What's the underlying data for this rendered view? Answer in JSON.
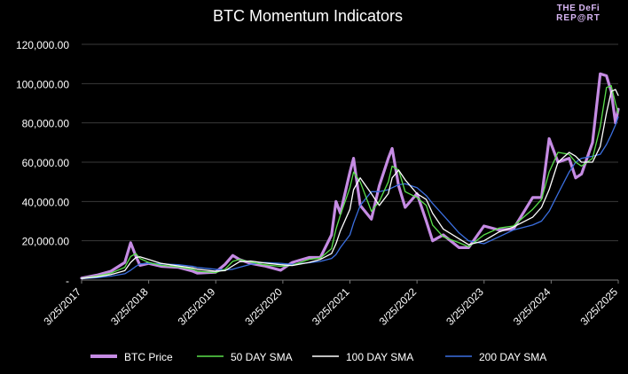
{
  "logo": {
    "line1": "THE DeFi",
    "line2": "REP@RT"
  },
  "chart_data": {
    "type": "line",
    "title": "BTC Momentum Indicators",
    "xlabel": "",
    "ylabel": "",
    "x_ticks": [
      "3/25/2017",
      "3/25/2018",
      "3/25/2019",
      "3/25/2020",
      "3/25/2021",
      "3/25/2022",
      "3/25/2023",
      "3/25/2024",
      "3/25/2025"
    ],
    "y_ticks": [
      "-",
      "20,000.00",
      "40,000.00",
      "60,000.00",
      "80,000.00",
      "100,000.00",
      "120,000.00"
    ],
    "ylim": [
      0,
      120000
    ],
    "xlim": [
      "2017-03-25",
      "2025-03-25"
    ],
    "grid": true,
    "legend": "bottom",
    "x": [
      "2017-03-25",
      "2017-06-15",
      "2017-09-01",
      "2017-11-15",
      "2017-12-17",
      "2018-01-15",
      "2018-02-06",
      "2018-03-25",
      "2018-06-01",
      "2018-09-01",
      "2018-11-20",
      "2018-12-15",
      "2019-03-25",
      "2019-05-15",
      "2019-06-26",
      "2019-08-01",
      "2019-10-01",
      "2019-12-15",
      "2020-03-13",
      "2020-05-15",
      "2020-08-15",
      "2020-10-15",
      "2020-12-15",
      "2021-01-08",
      "2021-02-01",
      "2021-03-25",
      "2021-04-14",
      "2021-05-20",
      "2021-07-20",
      "2021-09-01",
      "2021-10-20",
      "2021-11-10",
      "2021-12-15",
      "2022-01-20",
      "2022-03-25",
      "2022-05-15",
      "2022-06-18",
      "2022-08-15",
      "2022-11-09",
      "2022-12-31",
      "2023-03-25",
      "2023-06-15",
      "2023-09-01",
      "2023-12-15",
      "2024-02-01",
      "2024-03-14",
      "2024-05-01",
      "2024-07-01",
      "2024-08-05",
      "2024-09-06",
      "2024-11-05",
      "2024-12-17",
      "2025-01-20",
      "2025-02-15",
      "2025-03-10",
      "2025-03-25"
    ],
    "series": [
      {
        "name": "BTC Price",
        "color": "#c58be3",
        "width": 3.2,
        "values": [
          1000,
          2500,
          4500,
          9000,
          19000,
          12000,
          7500,
          8500,
          7000,
          6500,
          4500,
          3500,
          4000,
          8000,
          12500,
          10500,
          8500,
          7200,
          5000,
          9000,
          11500,
          11500,
          23000,
          40000,
          34000,
          55000,
          62000,
          38000,
          31000,
          48000,
          62000,
          67000,
          48000,
          37000,
          44000,
          30000,
          20000,
          23000,
          16500,
          16500,
          27500,
          25500,
          26000,
          42000,
          42000,
          72000,
          60000,
          62000,
          52000,
          54000,
          70000,
          105000,
          104000,
          96000,
          80000,
          87000
        ]
      },
      {
        "name": "50 DAY SMA",
        "color": "#5ae04b",
        "width": 1.3,
        "values": [
          900,
          2000,
          3500,
          6500,
          12000,
          13500,
          11000,
          9000,
          7500,
          6700,
          5500,
          4500,
          3800,
          5500,
          9500,
          10500,
          9200,
          7800,
          7000,
          7500,
          10500,
          11200,
          16000,
          26000,
          33000,
          47000,
          55000,
          50000,
          35000,
          40000,
          50000,
          58000,
          56000,
          45000,
          42000,
          38000,
          28000,
          22000,
          19000,
          17000,
          23000,
          26500,
          27500,
          36000,
          41000,
          55000,
          65000,
          64000,
          60000,
          58000,
          62000,
          78000,
          98000,
          99000,
          90000,
          85000
        ]
      },
      {
        "name": "100 DAY SMA",
        "color": "#ffffff",
        "width": 1.3,
        "values": [
          800,
          1600,
          2800,
          4800,
          9000,
          11500,
          11800,
          10500,
          8500,
          7200,
          6200,
          5500,
          4500,
          4800,
          7200,
          9300,
          9700,
          8700,
          7800,
          7400,
          9000,
          10500,
          13500,
          18500,
          25000,
          36000,
          46000,
          52000,
          44000,
          38000,
          44000,
          52000,
          56000,
          51000,
          44000,
          41000,
          34000,
          26000,
          21000,
          18000,
          20000,
          24500,
          27000,
          32000,
          37000,
          46000,
          60000,
          65000,
          63000,
          60000,
          60000,
          68000,
          85000,
          96000,
          97000,
          94000
        ]
      },
      {
        "name": "200 DAY SMA",
        "color": "#3b6fe0",
        "width": 1.3,
        "values": [
          700,
          1200,
          2000,
          3200,
          5000,
          7000,
          8200,
          8500,
          8200,
          7800,
          7000,
          6400,
          5500,
          5200,
          5500,
          6500,
          8000,
          9000,
          8500,
          8000,
          8800,
          9500,
          11000,
          13000,
          16500,
          23000,
          29000,
          38000,
          45000,
          45000,
          46000,
          47000,
          48500,
          49000,
          47000,
          43000,
          39000,
          33000,
          24000,
          20000,
          18500,
          22000,
          25500,
          28000,
          30000,
          35000,
          44000,
          55000,
          60000,
          62000,
          63000,
          64000,
          69000,
          74000,
          79000,
          83000
        ]
      }
    ]
  }
}
